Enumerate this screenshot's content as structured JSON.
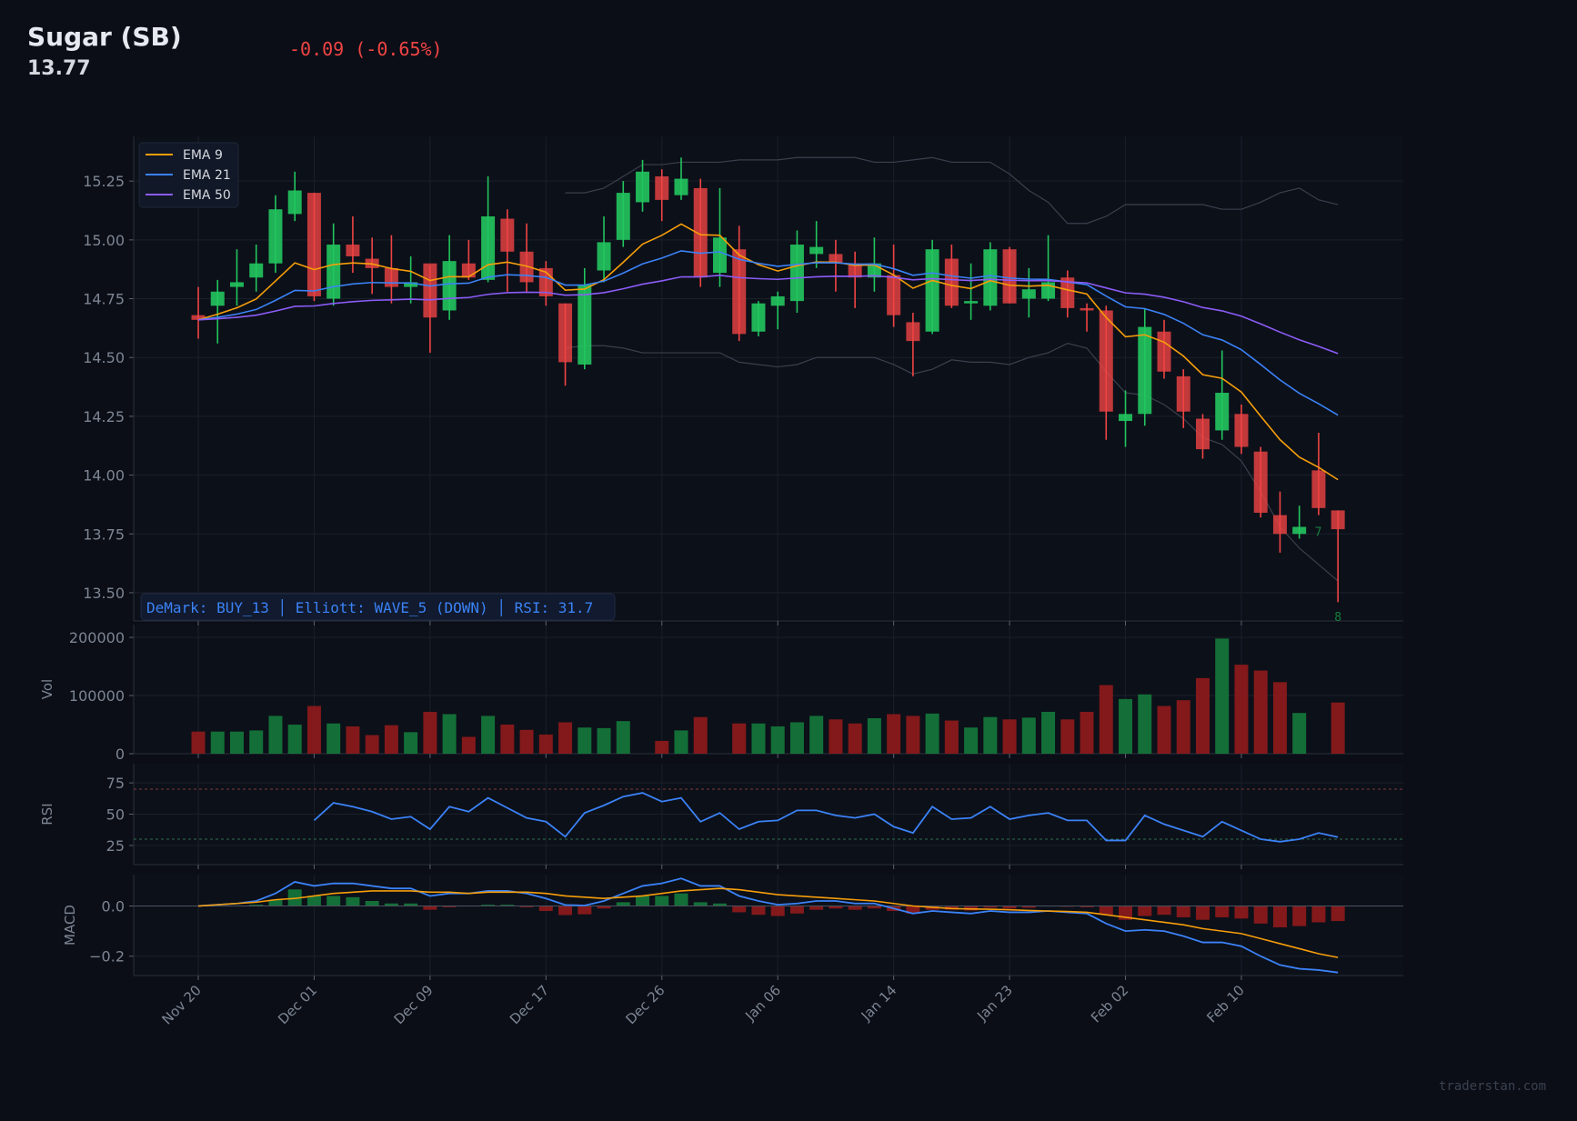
{
  "header": {
    "title": "Sugar (SB)",
    "price": "13.77",
    "change": "-0.09 (-0.65%)"
  },
  "watermark": "traderstan.com",
  "colors": {
    "background": "#0b0e16",
    "up": "#22c55e",
    "down": "#ef4444",
    "vol_up": "#15803d",
    "vol_down": "#991b1b",
    "ema9": "#f59e0b",
    "ema21": "#3b82f6",
    "ema50": "#8b5cf6",
    "bands": "#3a404c",
    "rsi": "#3b82f6",
    "macd": "#3b82f6",
    "signal": "#f59e0b",
    "annotation": "#3b82f6",
    "demark": "#15803d"
  },
  "annotation": "DeMark: BUY_13 │ Elliott: WAVE_5 (DOWN) │ RSI: 31.7",
  "chart_data": {
    "type": "candlestick",
    "x_tick_labels": [
      {
        "index": 0,
        "label": "Nov 20"
      },
      {
        "index": 6,
        "label": "Dec 01"
      },
      {
        "index": 12,
        "label": "Dec 09"
      },
      {
        "index": 18,
        "label": "Dec 17"
      },
      {
        "index": 24,
        "label": "Dec 26"
      },
      {
        "index": 30,
        "label": "Jan 06"
      },
      {
        "index": 36,
        "label": "Jan 14"
      },
      {
        "index": 42,
        "label": "Jan 23"
      },
      {
        "index": 48,
        "label": "Feb 02"
      },
      {
        "index": 54,
        "label": "Feb 10"
      }
    ],
    "price": {
      "ylim": [
        13.38,
        15.44
      ],
      "yticks": [
        13.5,
        13.75,
        14.0,
        14.25,
        14.5,
        14.75,
        15.0,
        15.25
      ],
      "ytick_labels": [
        "13.50",
        "13.75",
        "14.00",
        "14.25",
        "14.50",
        "14.75",
        "15.00",
        "15.25"
      ],
      "open": [
        14.68,
        14.72,
        14.8,
        14.84,
        14.9,
        15.11,
        15.2,
        14.75,
        14.98,
        14.92,
        14.88,
        14.8,
        14.9,
        14.7,
        14.9,
        14.83,
        15.09,
        14.95,
        14.88,
        14.73,
        14.47,
        14.87,
        15.0,
        15.16,
        15.27,
        15.19,
        15.22,
        14.86,
        14.96,
        14.61,
        14.72,
        14.74,
        14.94,
        14.94,
        14.9,
        14.84,
        14.85,
        14.65,
        14.61,
        14.92,
        14.73,
        14.72,
        14.96,
        14.75,
        14.75,
        14.84,
        14.71,
        14.7,
        14.23,
        14.26,
        14.61,
        14.42,
        14.24,
        14.19,
        14.26,
        14.1,
        13.83,
        13.75,
        14.02,
        13.85
      ],
      "high": [
        14.8,
        14.83,
        14.96,
        14.98,
        15.19,
        15.29,
        15.2,
        15.07,
        15.1,
        15.01,
        15.02,
        14.93,
        14.89,
        15.02,
        15.0,
        15.27,
        15.13,
        15.07,
        14.91,
        14.73,
        14.88,
        15.1,
        15.25,
        15.34,
        15.3,
        15.35,
        15.26,
        15.22,
        15.06,
        14.74,
        14.78,
        15.04,
        15.08,
        15.0,
        14.95,
        15.01,
        14.98,
        14.69,
        15.0,
        14.98,
        14.9,
        14.99,
        14.97,
        14.88,
        15.02,
        14.87,
        14.73,
        14.72,
        14.36,
        14.71,
        14.66,
        14.45,
        14.26,
        14.53,
        14.3,
        14.12,
        13.93,
        13.87,
        14.18,
        13.85
      ],
      "low": [
        14.58,
        14.56,
        14.72,
        14.78,
        14.86,
        15.08,
        14.74,
        14.72,
        14.86,
        14.77,
        14.73,
        14.73,
        14.52,
        14.66,
        14.83,
        14.82,
        14.78,
        14.78,
        14.72,
        14.38,
        14.45,
        14.82,
        14.97,
        15.12,
        15.08,
        15.17,
        14.8,
        14.8,
        14.57,
        14.59,
        14.62,
        14.69,
        14.88,
        14.78,
        14.71,
        14.78,
        14.63,
        14.42,
        14.6,
        14.71,
        14.66,
        14.7,
        14.73,
        14.67,
        14.74,
        14.67,
        14.61,
        14.15,
        14.12,
        14.21,
        14.41,
        14.2,
        14.07,
        14.15,
        14.09,
        13.82,
        13.67,
        13.73,
        13.83,
        13.46
      ],
      "close": [
        14.66,
        14.78,
        14.82,
        14.9,
        15.13,
        15.21,
        14.76,
        14.98,
        14.93,
        14.88,
        14.8,
        14.82,
        14.67,
        14.91,
        14.84,
        15.1,
        14.95,
        14.82,
        14.76,
        14.48,
        14.81,
        14.99,
        15.2,
        15.29,
        15.17,
        15.26,
        14.84,
        15.01,
        14.6,
        14.73,
        14.76,
        14.98,
        14.97,
        14.9,
        14.84,
        14.9,
        14.68,
        14.57,
        14.96,
        14.72,
        14.74,
        14.96,
        14.73,
        14.79,
        14.82,
        14.71,
        14.7,
        14.27,
        14.26,
        14.63,
        14.44,
        14.27,
        14.11,
        14.35,
        14.12,
        13.84,
        13.75,
        13.78,
        13.86,
        13.77
      ],
      "band_start_index": 19,
      "upper_band": [
        15.2,
        15.2,
        15.22,
        15.27,
        15.32,
        15.32,
        15.33,
        15.33,
        15.33,
        15.34,
        15.34,
        15.34,
        15.35,
        15.35,
        15.35,
        15.35,
        15.33,
        15.33,
        15.34,
        15.35,
        15.33,
        15.33,
        15.33,
        15.28,
        15.21,
        15.16,
        15.07,
        15.07,
        15.1,
        15.15,
        15.15,
        15.15,
        15.15,
        15.15,
        15.13,
        15.13,
        15.16,
        15.2,
        15.22,
        15.17,
        15.15
      ],
      "lower_band": [
        14.54,
        14.55,
        14.55,
        14.54,
        14.52,
        14.52,
        14.52,
        14.52,
        14.52,
        14.48,
        14.47,
        14.46,
        14.47,
        14.5,
        14.5,
        14.5,
        14.5,
        14.47,
        14.43,
        14.45,
        14.49,
        14.48,
        14.48,
        14.47,
        14.5,
        14.52,
        14.56,
        14.54,
        14.44,
        14.35,
        14.34,
        14.3,
        14.24,
        14.16,
        14.13,
        14.06,
        13.93,
        13.78,
        13.69,
        13.62,
        13.55
      ],
      "ema_series": [
        {
          "name": "EMA 9",
          "period": 9
        },
        {
          "name": "EMA 21",
          "period": 21
        },
        {
          "name": "EMA 50",
          "period": 50
        }
      ],
      "legend_position": "top-left",
      "demark_labels": [
        {
          "index": 57,
          "label": "7",
          "value": 13.76
        },
        {
          "index": 59,
          "label": "8",
          "value": 13.4
        }
      ]
    },
    "volume": {
      "ylabel": "Vol",
      "ylim": [
        0,
        222000
      ],
      "yticks": [
        0,
        100000,
        200000
      ],
      "ytick_labels": [
        "0",
        "100000",
        "200000"
      ],
      "values": [
        38000,
        38000,
        38000,
        40000,
        65000,
        50000,
        82000,
        52000,
        47000,
        32000,
        49000,
        37000,
        72000,
        68000,
        29000,
        65000,
        50000,
        41000,
        33000,
        54000,
        45000,
        44000,
        56000,
        0,
        22000,
        40000,
        63000,
        0,
        52000,
        52000,
        47000,
        54000,
        65000,
        59000,
        52000,
        61000,
        68000,
        65000,
        69000,
        57000,
        45000,
        63000,
        59000,
        62000,
        72000,
        59000,
        72000,
        118000,
        94000,
        102000,
        82000,
        92000,
        130000,
        198000,
        153000,
        143000,
        123000,
        70000,
        0,
        88000
      ]
    },
    "rsi": {
      "ylabel": "RSI",
      "ylim": [
        9.7,
        90.3
      ],
      "yticks": [
        25,
        50,
        75
      ],
      "ytick_labels": [
        "25",
        "50",
        "75"
      ],
      "levels": [
        30,
        70
      ],
      "start_index": 6,
      "values": [
        45,
        59,
        56,
        52,
        46,
        48,
        38,
        56,
        52,
        63,
        55,
        47,
        44,
        32,
        51,
        57,
        64,
        67,
        60,
        63,
        44,
        51,
        38,
        44,
        45,
        53,
        53,
        49,
        47,
        50,
        40,
        35,
        56,
        46,
        47,
        56,
        46,
        49,
        51,
        45,
        45,
        29,
        29,
        49,
        42,
        37,
        32,
        44,
        37,
        30,
        28,
        30,
        35,
        31.7
      ]
    },
    "macd": {
      "ylabel": "MACD",
      "ylim": [
        -0.277,
        0.125
      ],
      "yticks": [
        -0.2,
        0.0
      ],
      "ytick_labels": [
        "−0.2",
        "0.0"
      ],
      "macd": [
        0,
        0.005,
        0.01,
        0.02,
        0.05,
        0.096,
        0.08,
        0.09,
        0.09,
        0.08,
        0.07,
        0.07,
        0.04,
        0.05,
        0.05,
        0.06,
        0.06,
        0.05,
        0.03,
        0.004,
        0.002,
        0.02,
        0.05,
        0.08,
        0.09,
        0.11,
        0.08,
        0.08,
        0.04,
        0.02,
        0.005,
        0.01,
        0.02,
        0.02,
        0.01,
        0.01,
        -0.01,
        -0.03,
        -0.02,
        -0.025,
        -0.03,
        -0.02,
        -0.025,
        -0.025,
        -0.02,
        -0.025,
        -0.03,
        -0.07,
        -0.1,
        -0.095,
        -0.1,
        -0.12,
        -0.145,
        -0.145,
        -0.16,
        -0.2,
        -0.235,
        -0.25,
        -0.255,
        -0.265
      ],
      "signal": [
        0,
        0.005,
        0.01,
        0.015,
        0.025,
        0.03,
        0.04,
        0.05,
        0.055,
        0.06,
        0.06,
        0.06,
        0.055,
        0.055,
        0.05,
        0.055,
        0.055,
        0.055,
        0.05,
        0.04,
        0.035,
        0.03,
        0.035,
        0.04,
        0.05,
        0.06,
        0.065,
        0.07,
        0.065,
        0.055,
        0.045,
        0.04,
        0.035,
        0.03,
        0.025,
        0.02,
        0.01,
        0.0,
        -0.005,
        -0.01,
        -0.012,
        -0.013,
        -0.015,
        -0.018,
        -0.02,
        -0.022,
        -0.025,
        -0.035,
        -0.045,
        -0.055,
        -0.065,
        -0.075,
        -0.09,
        -0.1,
        -0.11,
        -0.13,
        -0.15,
        -0.17,
        -0.19,
        -0.205
      ]
    }
  }
}
